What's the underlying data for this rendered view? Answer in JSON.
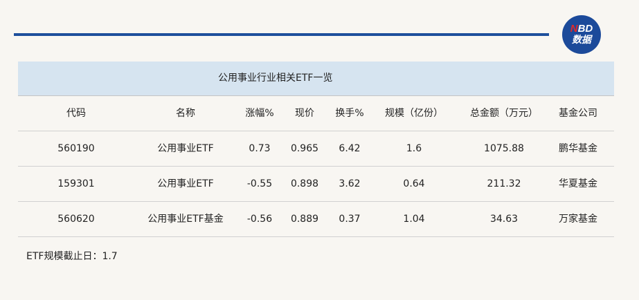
{
  "logo": {
    "line1_n": "N",
    "line1_rest": "BD",
    "line2": "数据"
  },
  "table": {
    "title": "公用事业行业相关ETF一览",
    "headers": [
      "代码",
      "名称",
      "涨幅%",
      "现价",
      "换手%",
      "规模（亿份）",
      "总金额（万元）",
      "基金公司"
    ],
    "rows": [
      [
        "560190",
        "公用事业ETF",
        "0.73",
        "0.965",
        "6.42",
        "1.6",
        "1075.88",
        "鹏华基金"
      ],
      [
        "159301",
        "公用事业ETF",
        "-0.55",
        "0.898",
        "3.62",
        "0.64",
        "211.32",
        "华夏基金"
      ],
      [
        "560620",
        "公用事业ETF基金",
        "-0.56",
        "0.889",
        "0.37",
        "1.04",
        "34.63",
        "万家基金"
      ]
    ]
  },
  "footnote": "ETF规模截止日：1.7",
  "colors": {
    "accent": "#1e4f9c",
    "header_bg": "#d6e4f0",
    "logo_red": "#e02a2a"
  }
}
